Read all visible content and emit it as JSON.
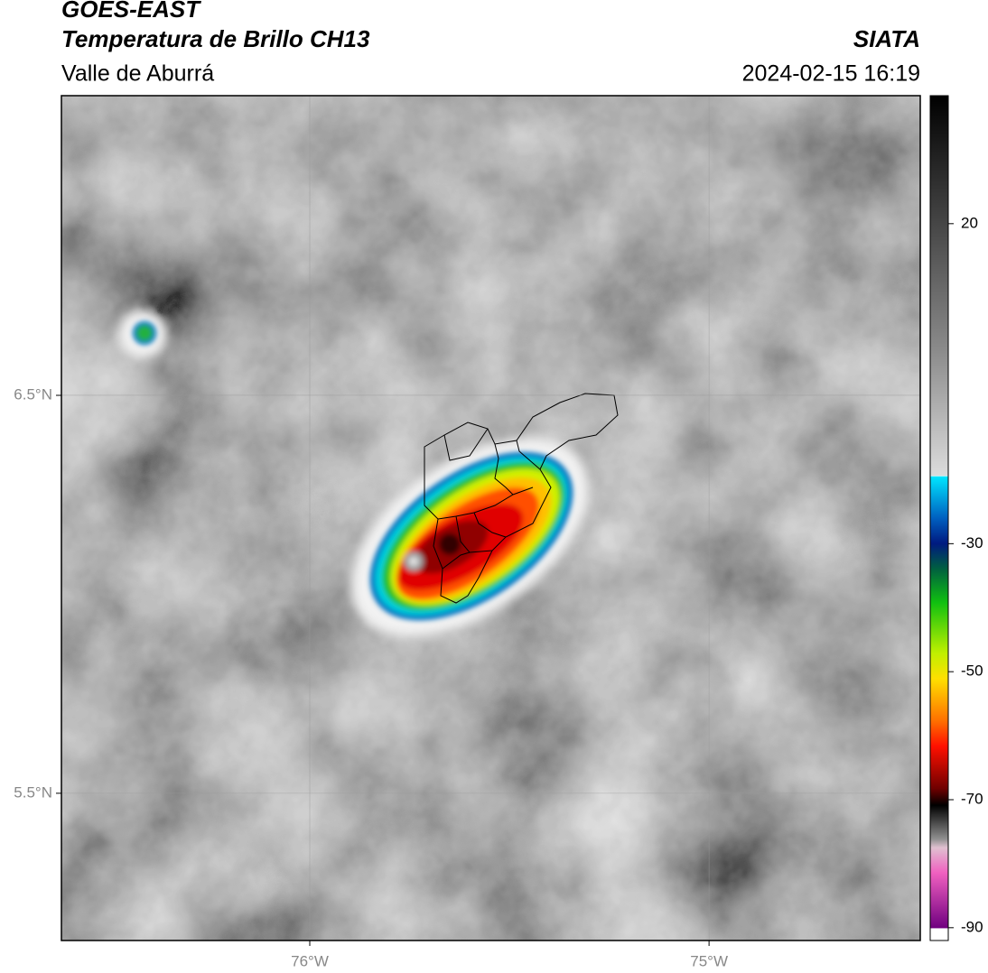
{
  "header": {
    "title": "GOES-EAST",
    "subtitle": "Temperatura de Brillo CH13",
    "region": "Valle de Aburrá",
    "source": "SIATA",
    "timestamp": "2024-02-15 16:19"
  },
  "map": {
    "ylim": [
      5.13,
      7.253
    ],
    "xlim": [
      -76.622,
      -74.471
    ],
    "yticks": [
      {
        "value": 6.5,
        "label": "6.5°N"
      },
      {
        "value": 5.5,
        "label": "5.5°N"
      }
    ],
    "xticks": [
      {
        "value": -76,
        "label": "76°W"
      },
      {
        "value": -75,
        "label": "75°W"
      }
    ]
  },
  "colorbar": {
    "lim": [
      -92,
      40
    ],
    "ticks": [
      20,
      -30,
      -50,
      -70,
      -90
    ]
  }
}
